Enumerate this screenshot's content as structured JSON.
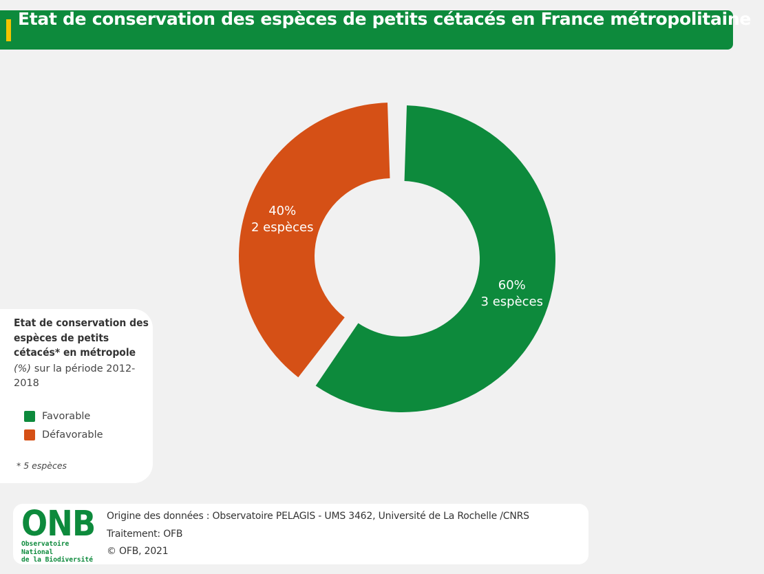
{
  "title": "Etat de conservation des espèces de petits cétacés en France métropolitaine",
  "colors": {
    "title_bg": "#0d8a3c",
    "title_accent": "#f3c400",
    "favorable": "#0d8a3c",
    "defavorable": "#d55016",
    "background": "#f1f1f1"
  },
  "chart_data": {
    "type": "pie",
    "donut": true,
    "slices": [
      {
        "name": "Favorable",
        "percent": 60,
        "label_pct": "60%",
        "label_count": "3 espèces",
        "color": "#0d8a3c"
      },
      {
        "name": "Défavorable",
        "percent": 40,
        "label_pct": "40%",
        "label_count": "2 espèces",
        "color": "#d55016"
      }
    ]
  },
  "legend": {
    "title": "Etat de conservation des espèces de petits cétacés* en métropole",
    "unit": "(%)",
    "period": "sur la période 2012-2018",
    "items": [
      {
        "label": "Favorable",
        "color": "#0d8a3c"
      },
      {
        "label": "Défavorable",
        "color": "#d55016"
      }
    ],
    "note": "* 5 espèces"
  },
  "footer": {
    "logo_text": "ONB",
    "logo_line1": "Observatoire National",
    "logo_line2": "de la Biodiversité",
    "source": "Origine des données : Observatoire PELAGIS - UMS 3462, Université de La Rochelle /CNRS",
    "treatment": "Traitement: OFB",
    "copyright": "© OFB, 2021"
  }
}
